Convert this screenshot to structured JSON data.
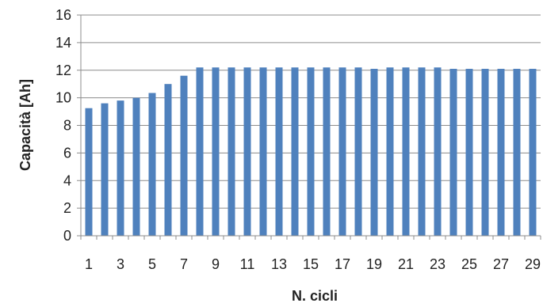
{
  "chart_data": {
    "type": "bar",
    "xlabel": "N. cicli",
    "ylabel": "Capacità [Ah]",
    "ylim": [
      0,
      16
    ],
    "yticks": [
      0,
      2,
      4,
      6,
      8,
      10,
      12,
      14,
      16
    ],
    "categories": [
      "1",
      "2",
      "3",
      "4",
      "5",
      "6",
      "7",
      "8",
      "9",
      "10",
      "11",
      "12",
      "13",
      "14",
      "15",
      "16",
      "17",
      "18",
      "19",
      "20",
      "21",
      "22",
      "23",
      "24",
      "25",
      "26",
      "27",
      "28",
      "29"
    ],
    "x_tick_labels_shown": [
      "1",
      "3",
      "5",
      "7",
      "9",
      "11",
      "13",
      "15",
      "17",
      "19",
      "21",
      "23",
      "25",
      "27",
      "29"
    ],
    "values": [
      9.25,
      9.6,
      9.8,
      10.0,
      10.35,
      11.0,
      11.6,
      12.2,
      12.2,
      12.2,
      12.2,
      12.2,
      12.2,
      12.2,
      12.2,
      12.2,
      12.2,
      12.2,
      12.1,
      12.2,
      12.2,
      12.2,
      12.2,
      12.1,
      12.1,
      12.1,
      12.1,
      12.1,
      12.1
    ],
    "grid": "horizontal",
    "legend": "none",
    "bar_color": "#4f81bd"
  }
}
